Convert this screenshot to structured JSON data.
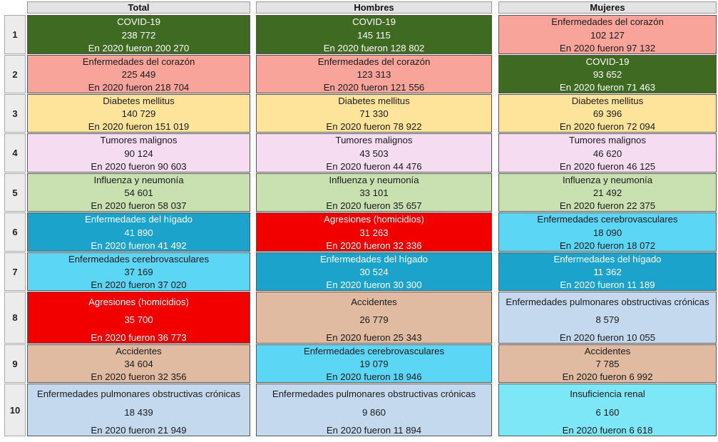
{
  "headers": {
    "total": "Total",
    "hombres": "Hombres",
    "mujeres": "Mujeres"
  },
  "colors": {
    "covid": "#3f6a22",
    "corazon": "#f8a49a",
    "diabetes": "#fde49a",
    "tumores": "#f5dcf0",
    "influenza": "#c9e0b0",
    "higado": "#1ba3cc",
    "cerebro": "#5cd6f5",
    "homicidios": "#f20000",
    "accidentes": "#e0bba1",
    "pulmonares": "#c5d9ee",
    "renal": "#7de6f7"
  },
  "rows": [
    {
      "rank": "1",
      "total": {
        "name": "COVID-19",
        "value": "238 772",
        "prev": "En 2020 fueron 200 270",
        "color": "covid"
      },
      "hombres": {
        "name": "COVID-19",
        "value": "145 115",
        "prev": "En 2020 fueron 128 802",
        "color": "covid"
      },
      "mujeres": {
        "name": "Enfermedades del corazón",
        "value": "102 127",
        "prev": "En 2020 fueron 97 132",
        "color": "corazon"
      }
    },
    {
      "rank": "2",
      "total": {
        "name": "Enfermedades del corazón",
        "value": "225 449",
        "prev": "En 2020 fueron 218 704",
        "color": "corazon"
      },
      "hombres": {
        "name": "Enfermedades del corazón",
        "value": "123 313",
        "prev": "En 2020 fueron 121 556",
        "color": "corazon"
      },
      "mujeres": {
        "name": "COVID-19",
        "value": "93 652",
        "prev": "En 2020 fueron 71 463",
        "color": "covid"
      }
    },
    {
      "rank": "3",
      "total": {
        "name": "Diabetes mellitus",
        "value": "140 729",
        "prev": "En 2020 fueron 151 019",
        "color": "diabetes"
      },
      "hombres": {
        "name": "Diabetes mellitus",
        "value": "71 330",
        "prev": "En 2020 fueron 78 922",
        "color": "diabetes"
      },
      "mujeres": {
        "name": "Diabetes mellitus",
        "value": "69 396",
        "prev": "En 2020 fueron 72 094",
        "color": "diabetes"
      }
    },
    {
      "rank": "4",
      "total": {
        "name": "Tumores malignos",
        "value": "90 124",
        "prev": "En 2020 fueron 90 603",
        "color": "tumores"
      },
      "hombres": {
        "name": "Tumores malignos",
        "value": "43 503",
        "prev": "En 2020 fueron 44 476",
        "color": "tumores"
      },
      "mujeres": {
        "name": "Tumores malignos",
        "value": "46 620",
        "prev": "En 2020 fueron 46 125",
        "color": "tumores"
      }
    },
    {
      "rank": "5",
      "total": {
        "name": "Influenza y neumonía",
        "value": "54 601",
        "prev": "En 2020 fueron 58 037",
        "color": "influenza"
      },
      "hombres": {
        "name": "Influenza y neumonía",
        "value": "33 101",
        "prev": "En 2020 fueron 35 657",
        "color": "influenza"
      },
      "mujeres": {
        "name": "Influenza y neumonía",
        "value": "21 492",
        "prev": "En 2020 fueron 22 375",
        "color": "influenza"
      }
    },
    {
      "rank": "6",
      "total": {
        "name": "Enfermedades del hígado",
        "value": "41 890",
        "prev": "En 2020 fueron 41 492",
        "color": "higado"
      },
      "hombres": {
        "name": "Agresiones (homicidios)",
        "value": "31 263",
        "prev": "En 2020 fueron 32 336",
        "color": "homicidios"
      },
      "mujeres": {
        "name": "Enfermedades cerebrovasculares",
        "value": "18 090",
        "prev": "En 2020 fueron 18 072",
        "color": "cerebro"
      }
    },
    {
      "rank": "7",
      "total": {
        "name": "Enfermedades cerebrovasculares",
        "value": "37 169",
        "prev": "En 2020 fueron 37 020",
        "color": "cerebro"
      },
      "hombres": {
        "name": "Enfermedades del hígado",
        "value": "30 524",
        "prev": "En 2020 fueron 30 300",
        "color": "higado"
      },
      "mujeres": {
        "name": "Enfermedades del hígado",
        "value": "11 362",
        "prev": "En 2020 fueron 11 189",
        "color": "higado"
      }
    },
    {
      "rank": "8",
      "total": {
        "name": "Agresiones (homicidios)",
        "value": "35 700",
        "prev": "En 2020 fueron 36 773",
        "color": "homicidios"
      },
      "hombres": {
        "name": "Accidentes",
        "value": "26 779",
        "prev": "En 2020 fueron 25 343",
        "color": "accidentes"
      },
      "mujeres": {
        "name": "Enfermedades pulmonares obstructivas crónicas",
        "value": "8 579",
        "prev": "En 2020 fueron 10 055",
        "color": "pulmonares"
      }
    },
    {
      "rank": "9",
      "total": {
        "name": "Accidentes",
        "value": "34 604",
        "prev": "En 2020 fueron 32 356",
        "color": "accidentes"
      },
      "hombres": {
        "name": "Enfermedades cerebrovasculares",
        "value": "19 079",
        "prev": "En 2020 fueron 18 946",
        "color": "cerebro"
      },
      "mujeres": {
        "name": "Accidentes",
        "value": "7 785",
        "prev": "En 2020 fueron 6 992",
        "color": "accidentes"
      }
    },
    {
      "rank": "10",
      "total": {
        "name": "Enfermedades pulmonares obstructivas crónicas",
        "value": "18 439",
        "prev": "En 2020 fueron 21 949",
        "color": "pulmonares"
      },
      "hombres": {
        "name": "Enfermedades pulmonares obstructivas crónicas",
        "value": "9 860",
        "prev": "En 2020 fueron 11 894",
        "color": "pulmonares"
      },
      "mujeres": {
        "name": "Insuficiencia renal",
        "value": "6 160",
        "prev": "En 2020 fueron 6 618",
        "color": "renal"
      }
    }
  ]
}
